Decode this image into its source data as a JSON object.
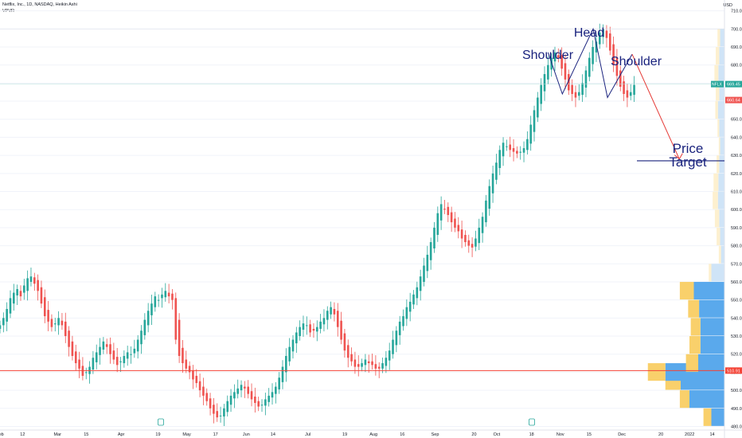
{
  "header": {
    "symbol_line": "Netflix, Inc., 1D, NASDAQ, Heikin Ashi",
    "indicator": "VPVR"
  },
  "axis_currency": "USD",
  "colors": {
    "up": "#26a69a",
    "down": "#ef5350",
    "profile_blue": "#5aa9ec",
    "profile_yellow": "#f9d06b",
    "profile_blue_light": "#cfe4f7",
    "profile_yellow_light": "#fdf0cf",
    "annotation": "#1a237e",
    "arrow": "#e53935",
    "support": "#f44336"
  },
  "price_labels": {
    "last": "669.45",
    "symbol": "NFLX",
    "prev": "660.64",
    "support": "510.91"
  },
  "annotations": {
    "left_shoulder": "Shoulder",
    "head": "Head",
    "right_shoulder": "Shoulder",
    "target_line1": "Price",
    "target_line2": "Target"
  },
  "chart_data": {
    "type": "candlestick",
    "y_axis": {
      "ticks": [
        480,
        490,
        500,
        510,
        520,
        530,
        540,
        550,
        560,
        570,
        580,
        590,
        600,
        610,
        620,
        630,
        640,
        650,
        660,
        670,
        680,
        690,
        700,
        710
      ],
      "range": [
        478,
        716
      ]
    },
    "x_axis": {
      "ticks": [
        "Feb",
        "12",
        "Mar",
        "15",
        "Apr",
        "19",
        "May",
        "17",
        "Jun",
        "14",
        "Jul",
        "19",
        "Aug",
        "16",
        "Sep",
        "20",
        "Oct",
        "18",
        "Nov",
        "15",
        "Dec",
        "20",
        "2022",
        "14"
      ],
      "range": [
        "2021-02-01",
        "2022-01-20"
      ]
    },
    "support_level": 510.91,
    "price_target": 627,
    "pattern_points": [
      {
        "date": "2021-10-26",
        "price": 687
      },
      {
        "date": "2021-11-02",
        "price": 664
      },
      {
        "date": "2021-11-17",
        "price": 700
      },
      {
        "date": "2021-11-24",
        "price": 662
      },
      {
        "date": "2021-12-06",
        "price": 686
      }
    ],
    "target_arrow": {
      "from": [
        "2021-12-06",
        686
      ],
      "to": [
        "2021-12-29",
        628
      ]
    },
    "series": [
      {
        "name": "NFLX",
        "start_date": "2021-02-01",
        "close": [
          536,
          540,
          545,
          551,
          554,
          556,
          552,
          558,
          562,
          563,
          559,
          555,
          548,
          541,
          538,
          535,
          537,
          540,
          536,
          530,
          524,
          519,
          515,
          512,
          508,
          510,
          513,
          518,
          521,
          524,
          527,
          524,
          520,
          517,
          514,
          516,
          519,
          521,
          520,
          523,
          528,
          533,
          539,
          544,
          548,
          552,
          550,
          553,
          555,
          552,
          550,
          528,
          519,
          515,
          512,
          510,
          506,
          504,
          500,
          497,
          494,
          490,
          487,
          485,
          486,
          490,
          494,
          497,
          499,
          501,
          503,
          501,
          498,
          495,
          493,
          491,
          492,
          495,
          497,
          499,
          502,
          507,
          513,
          519,
          524,
          528,
          532,
          535,
          537,
          536,
          532,
          533,
          535,
          538,
          540,
          544,
          546,
          542,
          535,
          528,
          522,
          518,
          516,
          513,
          513,
          515,
          517,
          515,
          514,
          512,
          512,
          515,
          518,
          522,
          528,
          533,
          538,
          541,
          546,
          549,
          553,
          557,
          563,
          569,
          575,
          582,
          590,
          598,
          603,
          600,
          597,
          593,
          590,
          588,
          584,
          582,
          580,
          579,
          584,
          590,
          596,
          605,
          613,
          620,
          626,
          633,
          637,
          635,
          633,
          632,
          631,
          632,
          634,
          639,
          647,
          655,
          662,
          669,
          675,
          680,
          684,
          687,
          684,
          678,
          672,
          666,
          664,
          662,
          665,
          670,
          677,
          684,
          690,
          693,
          698,
          700,
          695,
          688,
          680,
          674,
          668,
          664,
          662,
          665,
          669
        ]
      }
    ],
    "volume_profile": [
      {
        "price": 485,
        "up": 18,
        "down": 30
      },
      {
        "price": 495,
        "up": 22,
        "down": 80
      },
      {
        "price": 505,
        "up": 35,
        "down": 100
      },
      {
        "price": 510,
        "up": 40,
        "down": 135
      },
      {
        "price": 515,
        "up": 28,
        "down": 60
      },
      {
        "price": 525,
        "up": 25,
        "down": 55
      },
      {
        "price": 535,
        "up": 22,
        "down": 55
      },
      {
        "price": 545,
        "up": 25,
        "down": 58
      },
      {
        "price": 555,
        "up": 32,
        "down": 70
      },
      {
        "price": 565,
        "up": 6,
        "down": 30
      },
      {
        "price": 575,
        "up": 5,
        "down": 8
      },
      {
        "price": 585,
        "up": 8,
        "down": 10
      },
      {
        "price": 595,
        "up": 10,
        "down": 12
      },
      {
        "price": 605,
        "up": 12,
        "down": 15
      },
      {
        "price": 615,
        "up": 11,
        "down": 14
      },
      {
        "price": 625,
        "up": 6,
        "down": 12
      },
      {
        "price": 635,
        "up": 3,
        "down": 10
      },
      {
        "price": 645,
        "up": 4,
        "down": 12
      },
      {
        "price": 655,
        "up": 6,
        "down": 15
      },
      {
        "price": 665,
        "up": 8,
        "down": 12
      },
      {
        "price": 675,
        "up": 9,
        "down": 14
      },
      {
        "price": 685,
        "up": 8,
        "down": 12
      },
      {
        "price": 695,
        "up": 6,
        "down": 10
      }
    ]
  }
}
